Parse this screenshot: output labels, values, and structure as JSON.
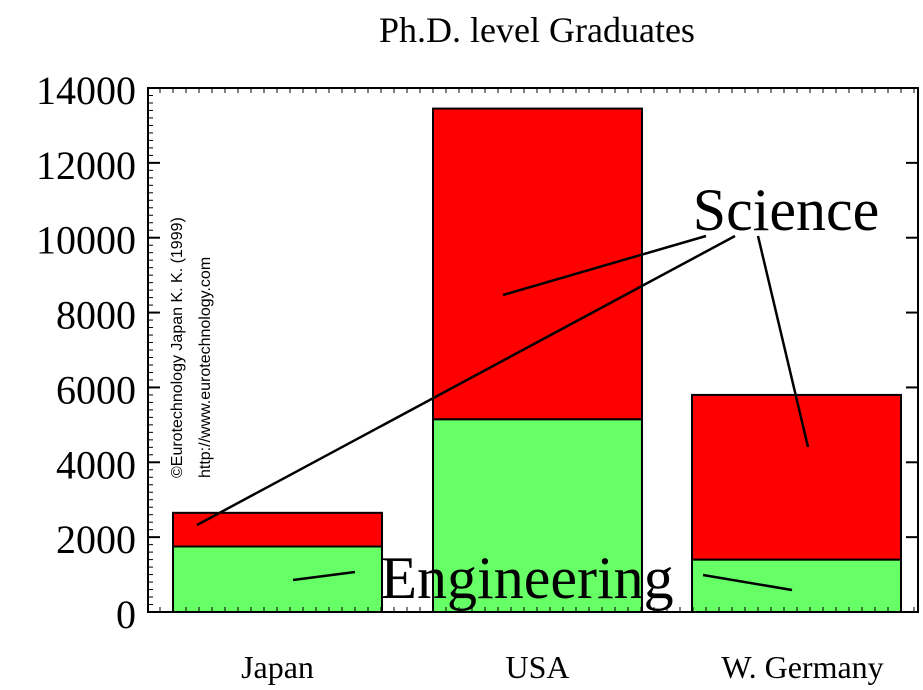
{
  "chart_data": {
    "type": "bar",
    "stacked": true,
    "title": "Ph.D. level Graduates",
    "xlabel": "",
    "ylabel": "",
    "categories": [
      "Japan",
      "USA",
      "W. Germany"
    ],
    "series": [
      {
        "name": "Engineering",
        "values": [
          1750,
          5150,
          1400
        ],
        "color": "#66ff66"
      },
      {
        "name": "Science",
        "values": [
          900,
          8300,
          4400
        ],
        "color": "#ff0000"
      }
    ],
    "ylim": [
      0,
      14000
    ],
    "yticks": [
      0,
      2000,
      4000,
      6000,
      8000,
      10000,
      12000,
      14000
    ],
    "grid": false,
    "annotations": {
      "science_label": "Science",
      "engineering_label": "Engineering"
    },
    "watermark": {
      "line1": "©Eurotechnology Japan K. K. (1999)",
      "line2": "http://www.eurotechnology.com"
    }
  }
}
